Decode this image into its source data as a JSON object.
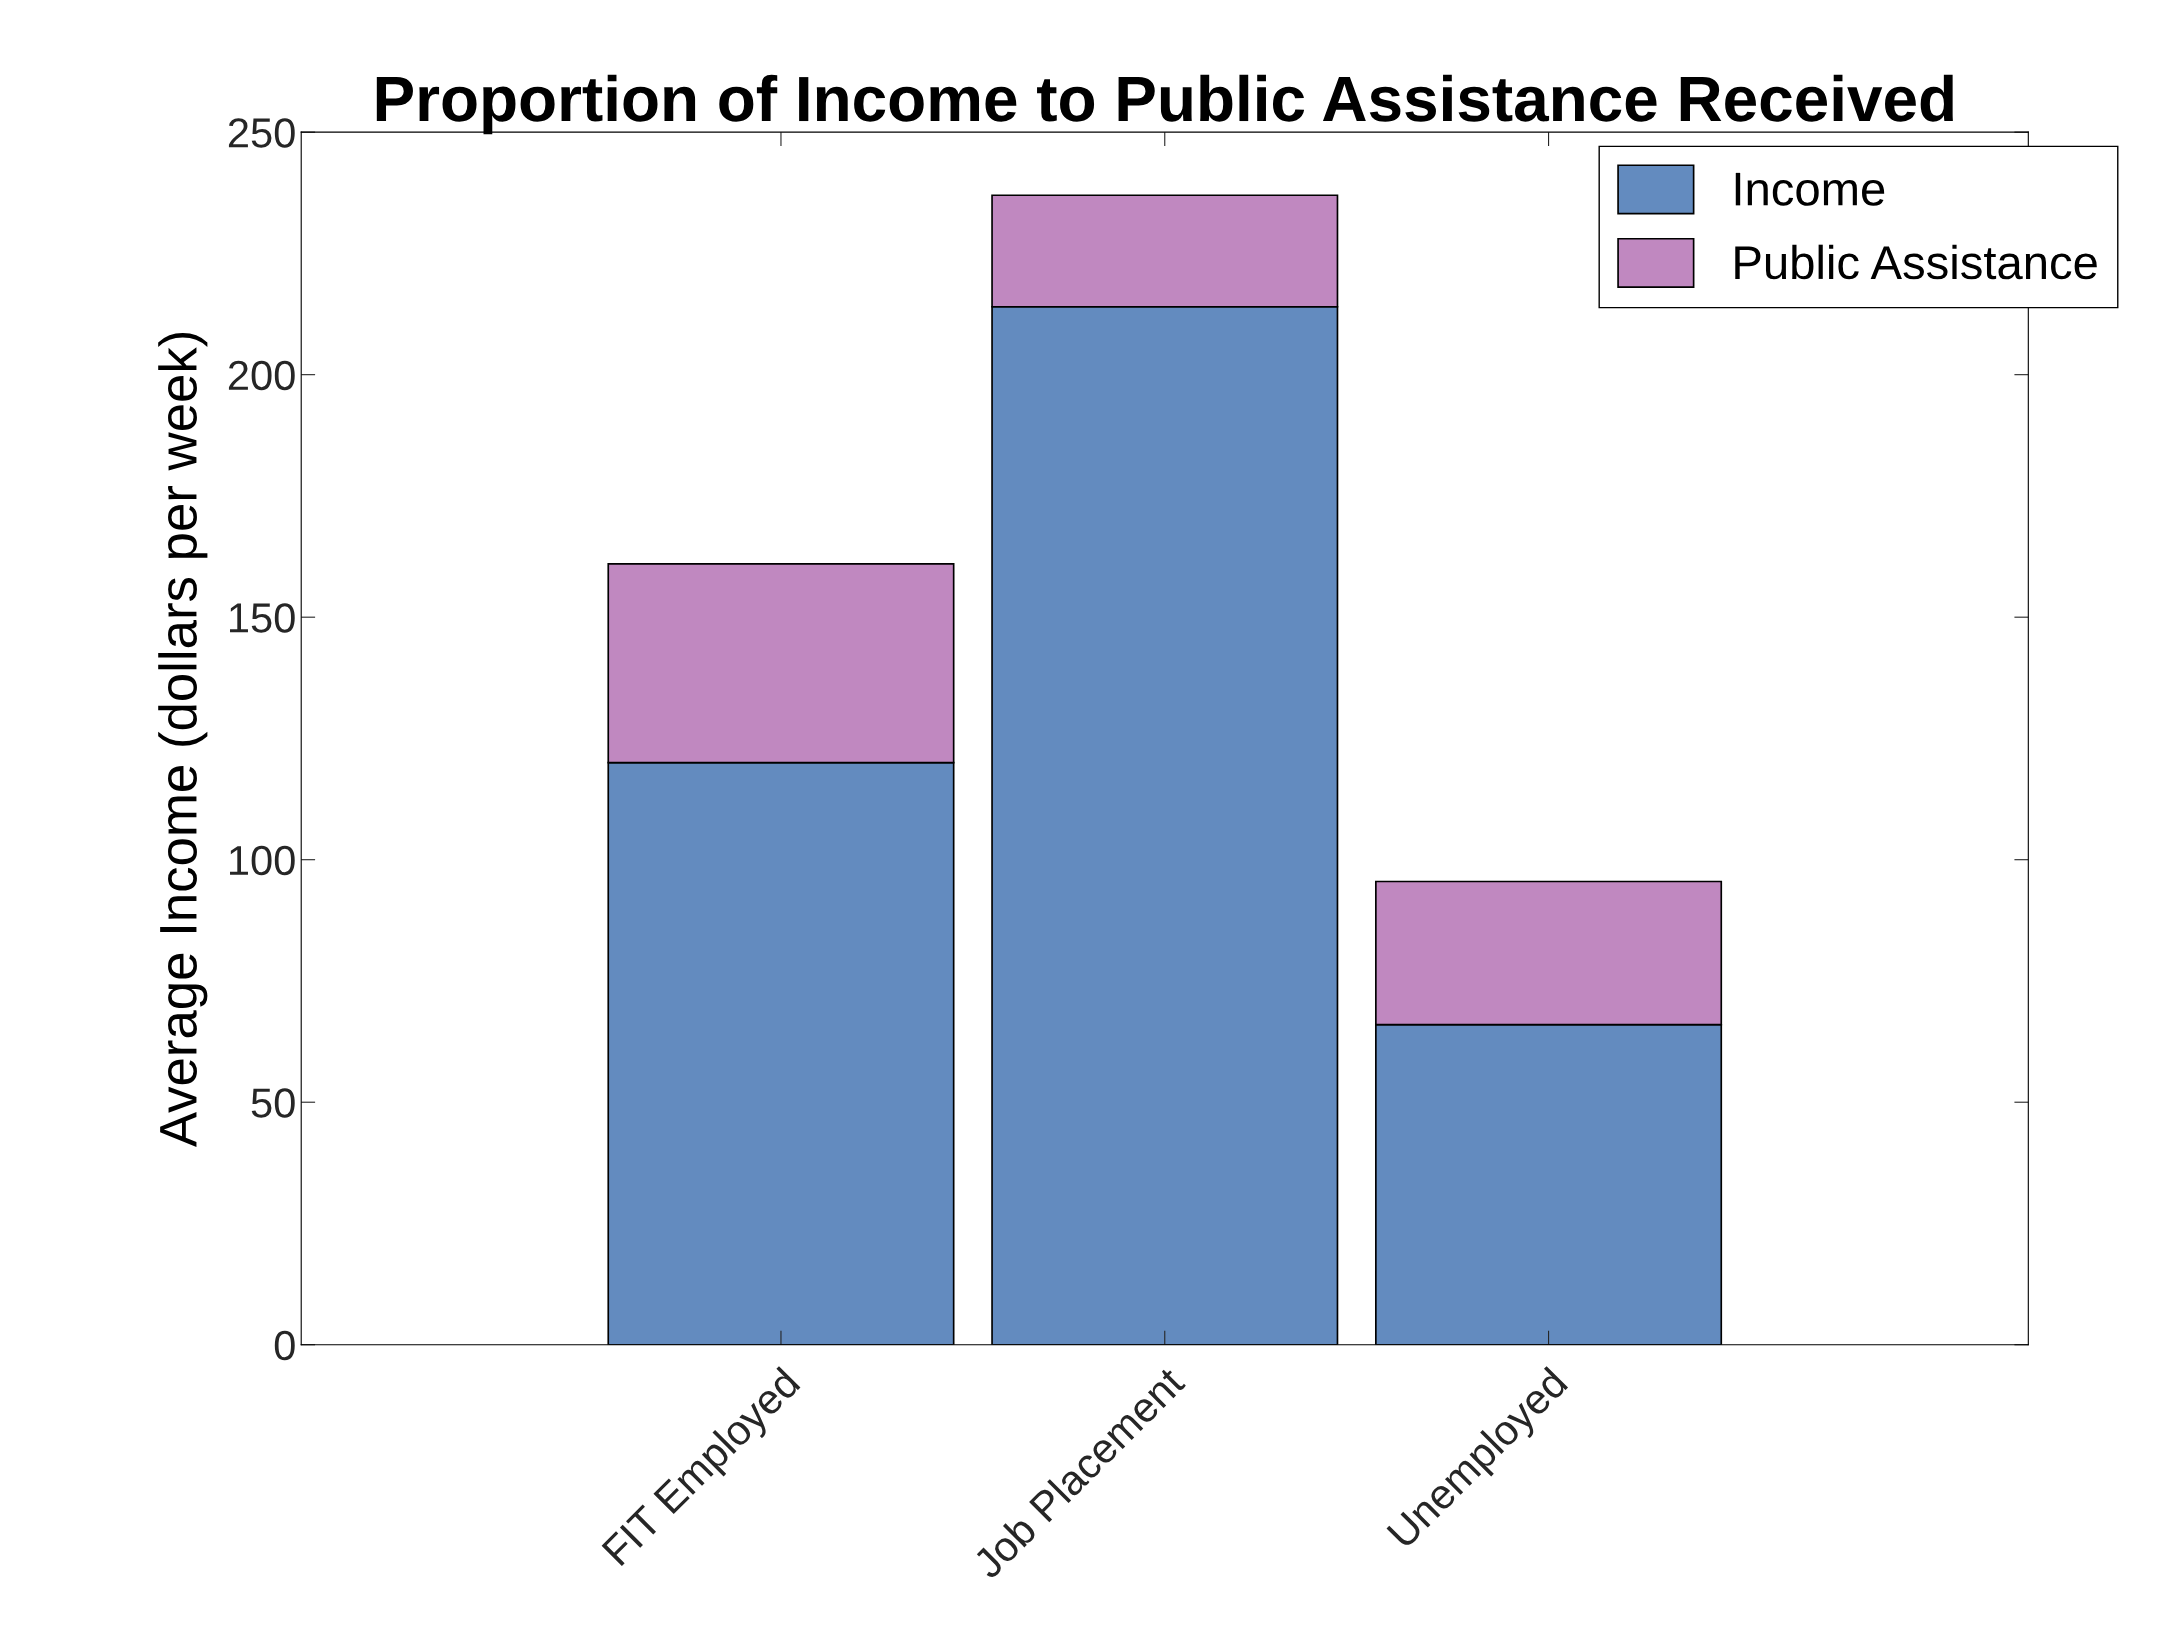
{
  "chart_data": {
    "type": "bar",
    "stacked": true,
    "title": "Proportion of Income to Public Assistance Received",
    "ylabel": "Average Income (dollars per week)",
    "categories": [
      "FIT Employed",
      "Job Placement",
      "Unemployed"
    ],
    "series": [
      {
        "name": "Income",
        "color": "#638bbf",
        "values": [
          120,
          214,
          66
        ]
      },
      {
        "name": "Public Assistance",
        "color": "#c088c0",
        "values": [
          41,
          23,
          29.5
        ]
      }
    ],
    "ylim": [
      0,
      250
    ],
    "yticks": [
      0,
      50,
      100,
      150,
      200,
      250
    ],
    "grid": false,
    "legend": "top right"
  }
}
